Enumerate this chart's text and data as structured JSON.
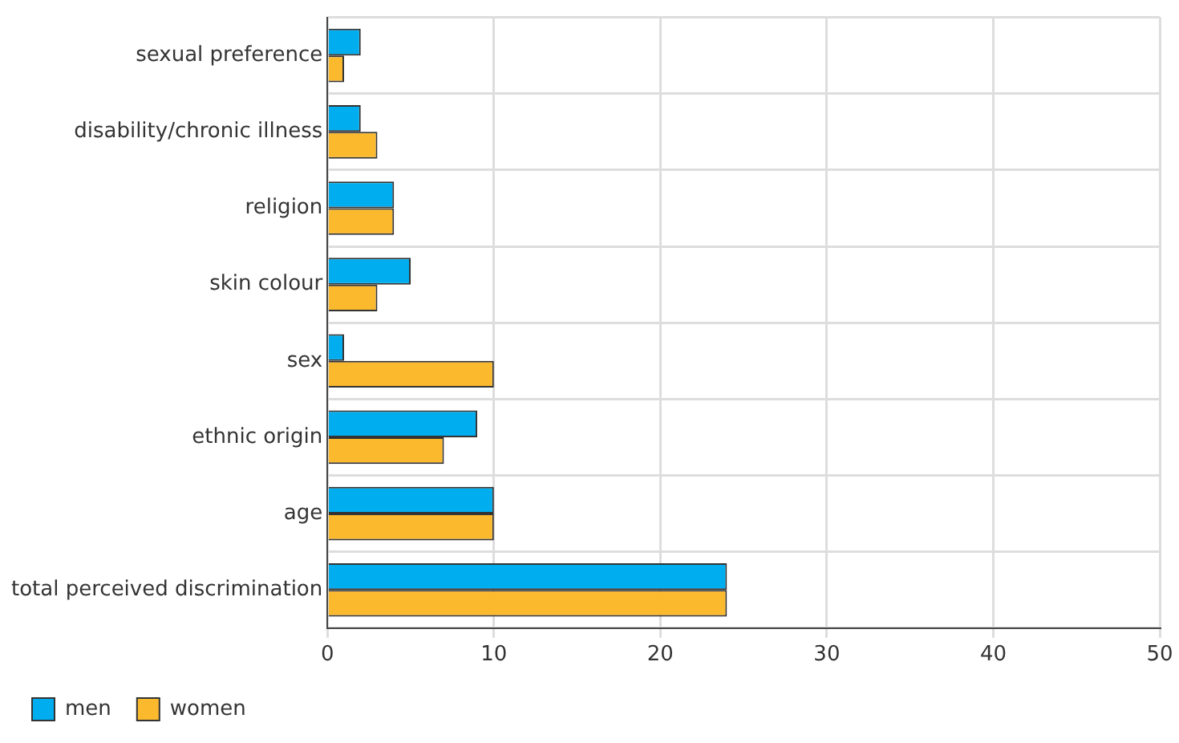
{
  "chart_data": {
    "type": "bar",
    "orientation": "horizontal",
    "categories": [
      "sexual preference",
      "disability/chronic illness",
      "religion",
      "skin colour",
      "sex",
      "ethnic origin",
      "age",
      "total perceived discrimination"
    ],
    "series": [
      {
        "name": "men",
        "color": "#00aeef",
        "values": [
          2,
          2,
          4,
          5,
          1,
          9,
          10,
          24
        ]
      },
      {
        "name": "women",
        "color": "#fbb92e",
        "values": [
          1,
          3,
          4,
          3,
          10,
          7,
          10,
          24
        ]
      }
    ],
    "xlim": [
      0,
      50
    ],
    "xticks": [
      0,
      10,
      20,
      30,
      40,
      50
    ],
    "grid": true,
    "legend": "bottom left"
  }
}
